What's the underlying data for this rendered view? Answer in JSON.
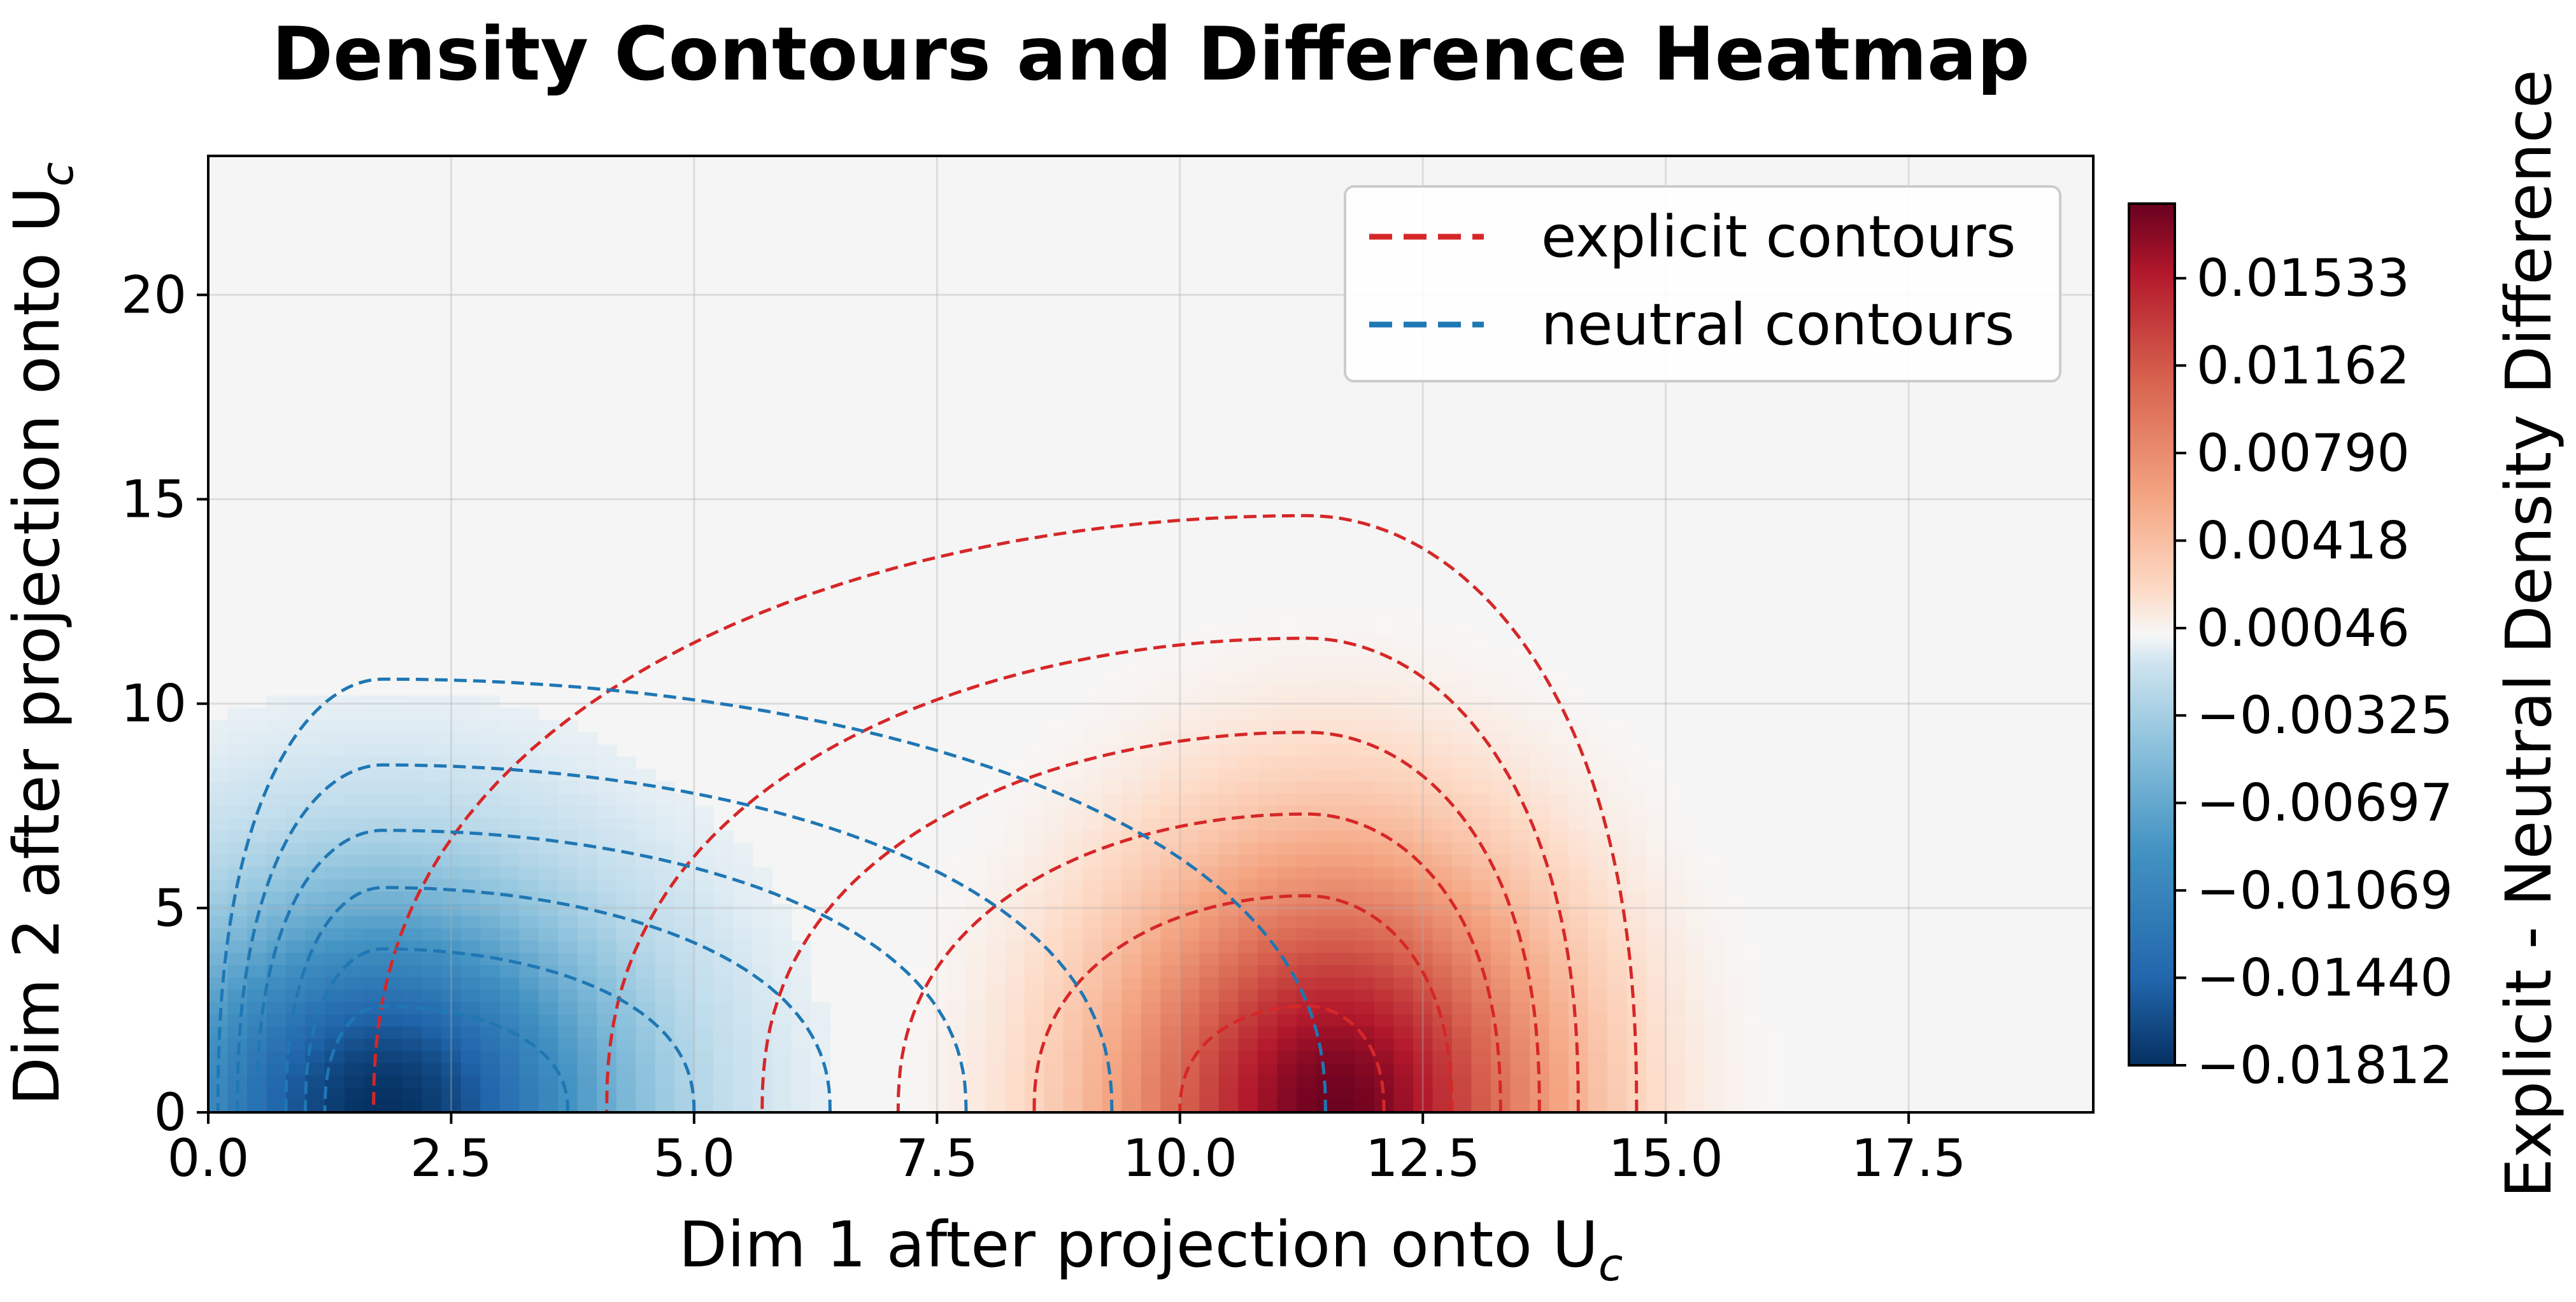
{
  "chart_data": {
    "type": "heatmap",
    "title": "Density Contours and Difference Heatmap",
    "xlabel_main": "Dim 1 after projection onto U",
    "xlabel_sub": "c",
    "ylabel_main": "Dim 2 after projection onto U",
    "ylabel_sub": "c",
    "xlim": [
      0,
      19.4
    ],
    "ylim": [
      0,
      23.4
    ],
    "x_ticks": [
      0.0,
      2.5,
      5.0,
      7.5,
      10.0,
      12.5,
      15.0,
      17.5
    ],
    "x_tick_labels": [
      "0.0",
      "2.5",
      "5.0",
      "7.5",
      "10.0",
      "12.5",
      "15.0",
      "17.5"
    ],
    "y_ticks": [
      0,
      5,
      10,
      15,
      20
    ],
    "y_tick_labels": [
      "0",
      "5",
      "10",
      "15",
      "20"
    ],
    "grid": true,
    "legend_placement": "top-right",
    "legend": [
      {
        "label": "explicit contours",
        "color": "#d62728",
        "style": "dashed"
      },
      {
        "label": "neutral contours",
        "color": "#1f77b4",
        "style": "dashed"
      }
    ],
    "colorbar": {
      "label": "Explicit - Neutral Density Difference",
      "colormap": "RdBu_r",
      "min": -0.01812,
      "max": 0.0185,
      "tick_values": [
        -0.01812,
        -0.0144,
        -0.01069,
        -0.00697,
        -0.00325,
        0.00046,
        0.00418,
        0.0079,
        0.01162,
        0.01533
      ],
      "tick_labels": [
        "−0.01812",
        "−0.01440",
        "−0.01069",
        "−0.00697",
        "−0.00325",
        "0.00046",
        "0.00418",
        "0.00790",
        "0.01162",
        "0.01533"
      ]
    },
    "explicit_density": {
      "center": [
        11.6,
        0.0
      ],
      "sx": 2.2,
      "sy": 6.0,
      "amplitude": 0.0183
    },
    "neutral_density": {
      "center": [
        1.8,
        0.0
      ],
      "sx": 2.3,
      "sy": 5.0,
      "amplitude": 0.0181
    },
    "explicit_contours": [
      {
        "cx": 11.3,
        "rx_left": 9.6,
        "rx_right": 3.4,
        "ry": 14.6
      },
      {
        "cx": 11.3,
        "rx_left": 7.2,
        "rx_right": 2.8,
        "ry": 11.6
      },
      {
        "cx": 11.3,
        "rx_left": 5.6,
        "rx_right": 2.4,
        "ry": 9.3
      },
      {
        "cx": 11.3,
        "rx_left": 4.2,
        "rx_right": 2.0,
        "ry": 7.3
      },
      {
        "cx": 11.3,
        "rx_left": 2.8,
        "rx_right": 1.5,
        "ry": 5.3
      },
      {
        "cx": 11.3,
        "rx_left": 1.3,
        "rx_right": 0.8,
        "ry": 2.6
      }
    ],
    "neutral_contours": [
      {
        "cx": 1.8,
        "rx_left": 1.7,
        "rx_right": 9.7,
        "ry": 10.6
      },
      {
        "cx": 1.8,
        "rx_left": 1.5,
        "rx_right": 7.5,
        "ry": 8.5
      },
      {
        "cx": 1.8,
        "rx_left": 1.3,
        "rx_right": 6.0,
        "ry": 6.9
      },
      {
        "cx": 1.8,
        "rx_left": 1.0,
        "rx_right": 4.6,
        "ry": 5.5
      },
      {
        "cx": 1.8,
        "rx_left": 0.8,
        "rx_right": 3.2,
        "ry": 4.0
      },
      {
        "cx": 1.8,
        "rx_left": 0.6,
        "rx_right": 1.9,
        "ry": 2.6
      }
    ]
  }
}
